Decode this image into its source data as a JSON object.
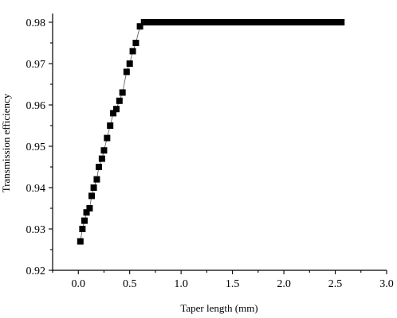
{
  "chart_data": {
    "type": "line",
    "title": "",
    "xlabel": "Taper length (mm)",
    "ylabel": "Transmission efficiency",
    "xlim": [
      -0.25,
      3.0
    ],
    "ylim": [
      0.92,
      0.983
    ],
    "xticks": [
      0.0,
      0.5,
      1.0,
      1.5,
      2.0,
      2.5,
      3.0
    ],
    "xtick_labels": [
      "0.0",
      "0.5",
      "1.0",
      "1.5",
      "2.0",
      "2.5",
      "3.0"
    ],
    "yticks": [
      0.92,
      0.93,
      0.94,
      0.95,
      0.96,
      0.97,
      0.98
    ],
    "ytick_labels": [
      "0.92",
      "0.93",
      "0.94",
      "0.95",
      "0.96",
      "0.97",
      "0.98"
    ],
    "grid": false,
    "legend": "none",
    "marker": "square",
    "marker_color": "#000000",
    "line_color": "#555555",
    "series": [
      {
        "x": [
          0.02,
          0.04,
          0.06,
          0.08,
          0.11,
          0.13,
          0.15,
          0.18,
          0.2,
          0.23,
          0.25,
          0.28,
          0.31,
          0.34,
          0.37,
          0.4,
          0.43,
          0.47,
          0.5,
          0.53,
          0.56,
          0.6,
          0.64,
          0.69,
          0.73,
          0.76,
          0.79,
          0.82,
          0.85,
          0.88,
          0.91,
          0.94,
          0.97,
          1.0,
          1.03,
          1.06,
          1.09,
          1.12,
          1.15,
          1.18,
          1.21,
          1.24,
          1.27,
          1.3,
          1.33,
          1.36,
          1.39,
          1.42,
          1.45,
          1.48,
          1.51,
          1.54,
          1.57,
          1.6,
          1.63,
          1.66,
          1.69,
          1.72,
          1.75,
          1.78,
          1.81,
          1.84,
          1.87,
          1.9,
          1.93,
          1.96,
          1.99,
          2.02,
          2.05,
          2.08,
          2.11,
          2.14,
          2.17,
          2.2,
          2.23,
          2.26,
          2.29,
          2.32,
          2.35,
          2.38,
          2.41,
          2.44,
          2.47,
          2.5,
          2.53,
          2.56
        ],
        "y": [
          0.927,
          0.93,
          0.932,
          0.934,
          0.935,
          0.938,
          0.94,
          0.942,
          0.945,
          0.947,
          0.949,
          0.952,
          0.955,
          0.958,
          0.959,
          0.961,
          0.963,
          0.968,
          0.97,
          0.973,
          0.975,
          0.979,
          0.98,
          0.98,
          0.98,
          0.98,
          0.98,
          0.98,
          0.98,
          0.98,
          0.98,
          0.98,
          0.98,
          0.98,
          0.98,
          0.98,
          0.98,
          0.98,
          0.98,
          0.98,
          0.98,
          0.98,
          0.98,
          0.98,
          0.98,
          0.98,
          0.98,
          0.98,
          0.98,
          0.98,
          0.98,
          0.98,
          0.98,
          0.98,
          0.98,
          0.98,
          0.98,
          0.98,
          0.98,
          0.98,
          0.98,
          0.98,
          0.98,
          0.98,
          0.98,
          0.98,
          0.98,
          0.98,
          0.98,
          0.98,
          0.98,
          0.98,
          0.98,
          0.98,
          0.98,
          0.98,
          0.98,
          0.98,
          0.98,
          0.98,
          0.98,
          0.98,
          0.98,
          0.98,
          0.98,
          0.98
        ]
      }
    ]
  }
}
